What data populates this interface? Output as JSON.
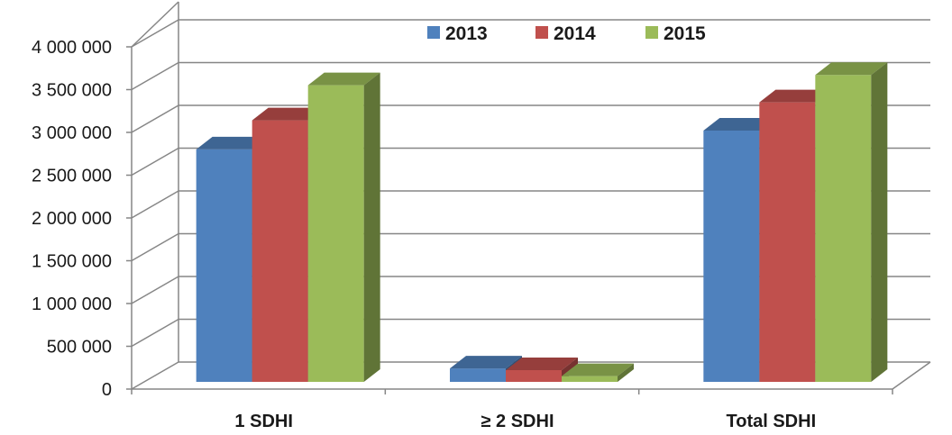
{
  "chart_data": {
    "type": "bar",
    "style": "3d-clustered-column",
    "categories": [
      "1 SDHI",
      "≥ 2 SDHI",
      "Total SDHI"
    ],
    "series": [
      {
        "name": "2013",
        "color": "#4F81BD",
        "values": [
          2780000,
          220000,
          3000000
        ]
      },
      {
        "name": "2014",
        "color": "#C0504D",
        "values": [
          3120000,
          200000,
          3330000
        ]
      },
      {
        "name": "2015",
        "color": "#9BBB59",
        "values": [
          3530000,
          130000,
          3650000
        ]
      }
    ],
    "ylim": [
      0,
      4000000
    ],
    "y_ticks": [
      0,
      500000,
      1000000,
      1500000,
      2000000,
      2500000,
      3000000,
      3500000,
      4000000
    ],
    "y_tick_labels": [
      "0",
      "500 000",
      "1 000 000",
      "1 500 000",
      "2 000 000",
      "2 500 000",
      "3 000 000",
      "3 500 000",
      "4 000 000"
    ],
    "grid": true,
    "legend_position": "top",
    "title": "",
    "xlabel": "",
    "ylabel": ""
  }
}
